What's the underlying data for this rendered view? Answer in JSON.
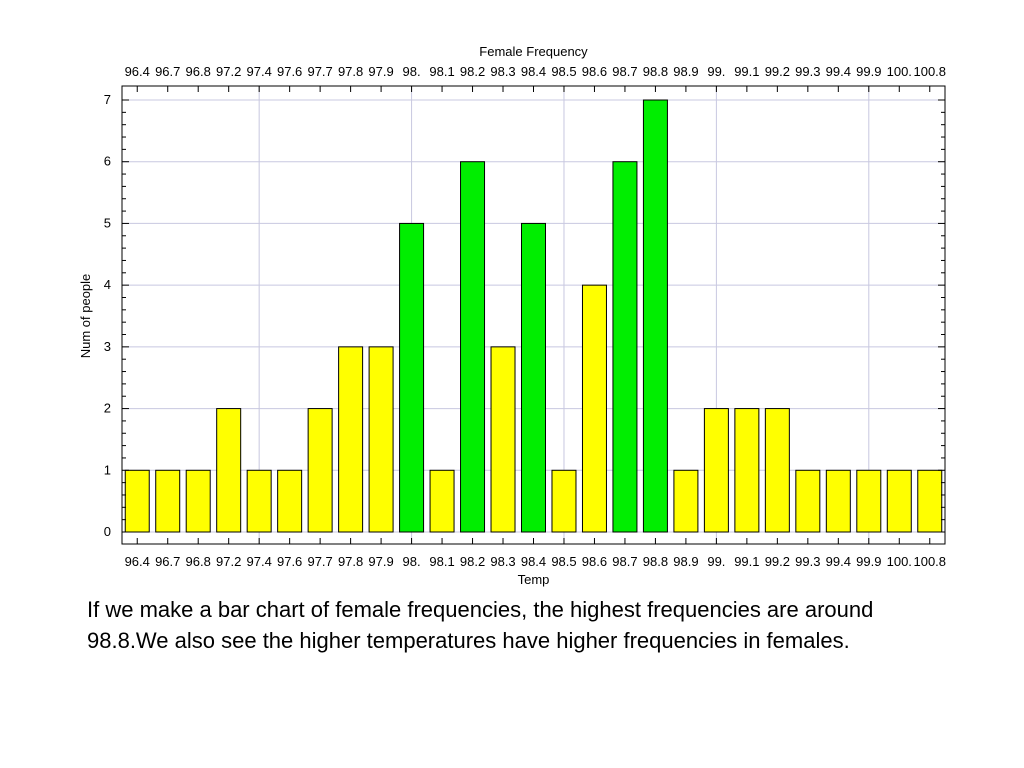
{
  "chart_data": {
    "type": "bar",
    "title": "Female Frequency",
    "xlabel": "Temp",
    "ylabel": "Num of people",
    "categories": [
      "96.4",
      "96.7",
      "96.8",
      "97.2",
      "97.4",
      "97.6",
      "97.7",
      "97.8",
      "97.9",
      "98.",
      "98.1",
      "98.2",
      "98.3",
      "98.4",
      "98.5",
      "98.6",
      "98.7",
      "98.8",
      "98.9",
      "99.",
      "99.1",
      "99.2",
      "99.3",
      "99.4",
      "99.9",
      "100.",
      "100.8"
    ],
    "values": [
      1,
      1,
      1,
      2,
      1,
      1,
      2,
      3,
      3,
      5,
      1,
      6,
      3,
      5,
      1,
      4,
      6,
      7,
      1,
      2,
      2,
      2,
      1,
      1,
      1,
      1,
      1
    ],
    "highlighted": [
      false,
      false,
      false,
      false,
      false,
      false,
      false,
      false,
      false,
      true,
      false,
      true,
      false,
      true,
      false,
      false,
      true,
      true,
      false,
      false,
      false,
      false,
      false,
      false,
      false,
      false,
      false
    ],
    "ylim": [
      0,
      7
    ],
    "yticks": [
      0,
      1,
      2,
      3,
      4,
      5,
      6,
      7
    ],
    "grid": true,
    "tick_labels_top_and_bottom": true,
    "colors": {
      "bar": "#ffff00",
      "bar_highlight": "#00ee00",
      "bar_outline": "#000000",
      "grid": "#c8c8e0",
      "axis": "#000000"
    }
  },
  "caption": "If we make a bar chart of female frequencies, the highest frequencies are around 98.8.We also see the higher temperatures have higher frequencies in females."
}
